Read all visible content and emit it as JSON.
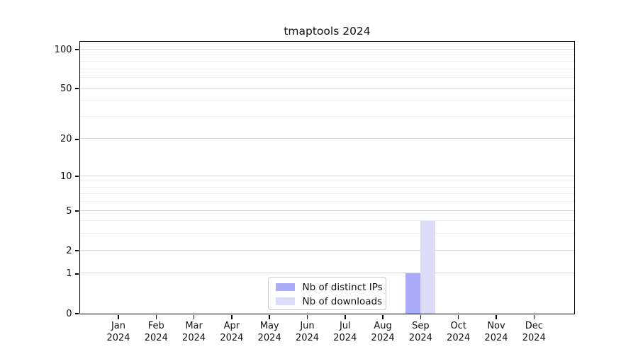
{
  "chart_data": {
    "type": "bar",
    "title": "tmaptools 2024",
    "categories": [
      "Jan 2024",
      "Feb 2024",
      "Mar 2024",
      "Apr 2024",
      "May 2024",
      "Jun 2024",
      "Jul 2024",
      "Aug 2024",
      "Sep 2024",
      "Oct 2024",
      "Nov 2024",
      "Dec 2024"
    ],
    "series": [
      {
        "name": "Nb of distinct IPs",
        "color": "#aaaaf8",
        "values": [
          0,
          0,
          0,
          0,
          0,
          0,
          0,
          0,
          1,
          0,
          0,
          0
        ]
      },
      {
        "name": "Nb of downloads",
        "color": "#dcdcf9",
        "values": [
          0,
          0,
          0,
          0,
          0,
          0,
          0,
          0,
          4,
          0,
          0,
          0
        ]
      }
    ],
    "xlabel": "",
    "ylabel": "",
    "yscale": "log1p",
    "ylim": [
      0,
      105
    ],
    "yticks": [
      0,
      1,
      2,
      5,
      10,
      20,
      50,
      100
    ],
    "minor_yticks": [
      3,
      4,
      6,
      7,
      8,
      9,
      30,
      40,
      60,
      70,
      80,
      90
    ],
    "grid": "horizontal",
    "legend_position": "inside-bottom-center",
    "colors": {
      "axis": "#000000",
      "major_grid": "#d4d4d4",
      "minor_grid": "#ececec",
      "background": "#ffffff",
      "text": "#111111"
    }
  }
}
